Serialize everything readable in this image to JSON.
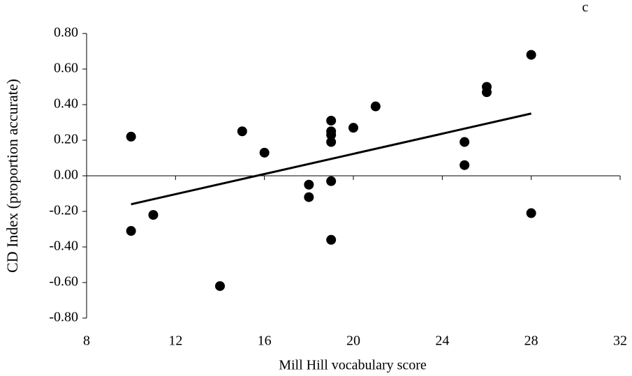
{
  "chart_data": {
    "type": "scatter",
    "panel_label": "c",
    "x_label": "Mill Hill vocabulary score",
    "y_label": "CD Index (proportion accurate)",
    "x": [
      10,
      10,
      11,
      14,
      15,
      16,
      18,
      18,
      19,
      19,
      19,
      19,
      19,
      19,
      20,
      21,
      25,
      25,
      26,
      26,
      28,
      28
    ],
    "values": [
      0.22,
      -0.31,
      -0.22,
      -0.62,
      0.25,
      0.13,
      -0.05,
      -0.12,
      0.31,
      0.25,
      0.23,
      0.19,
      -0.03,
      -0.36,
      0.27,
      0.39,
      0.19,
      0.06,
      0.5,
      0.47,
      0.68,
      -0.21
    ],
    "color": "#000000",
    "trendline": {
      "x": [
        10,
        28
      ],
      "values": [
        -0.16,
        0.35
      ]
    },
    "xlim": [
      8,
      32
    ],
    "xticks": [
      8,
      12,
      16,
      20,
      24,
      28,
      32
    ],
    "ylim": [
      -0.8,
      0.8
    ],
    "yticks": [
      {
        "value": -0.8,
        "label": "-0.80"
      },
      {
        "value": -0.6,
        "label": "-0.60"
      },
      {
        "value": -0.4,
        "label": "-0.40"
      },
      {
        "value": -0.2,
        "label": "-0.20"
      },
      {
        "value": 0,
        "label": "0.00"
      },
      {
        "value": 0.2,
        "label": "0.20"
      },
      {
        "value": 0.4,
        "label": "0.40"
      },
      {
        "value": 0.6,
        "label": "0.60"
      },
      {
        "value": 0.8,
        "label": "0.80"
      }
    ],
    "grid": false
  }
}
